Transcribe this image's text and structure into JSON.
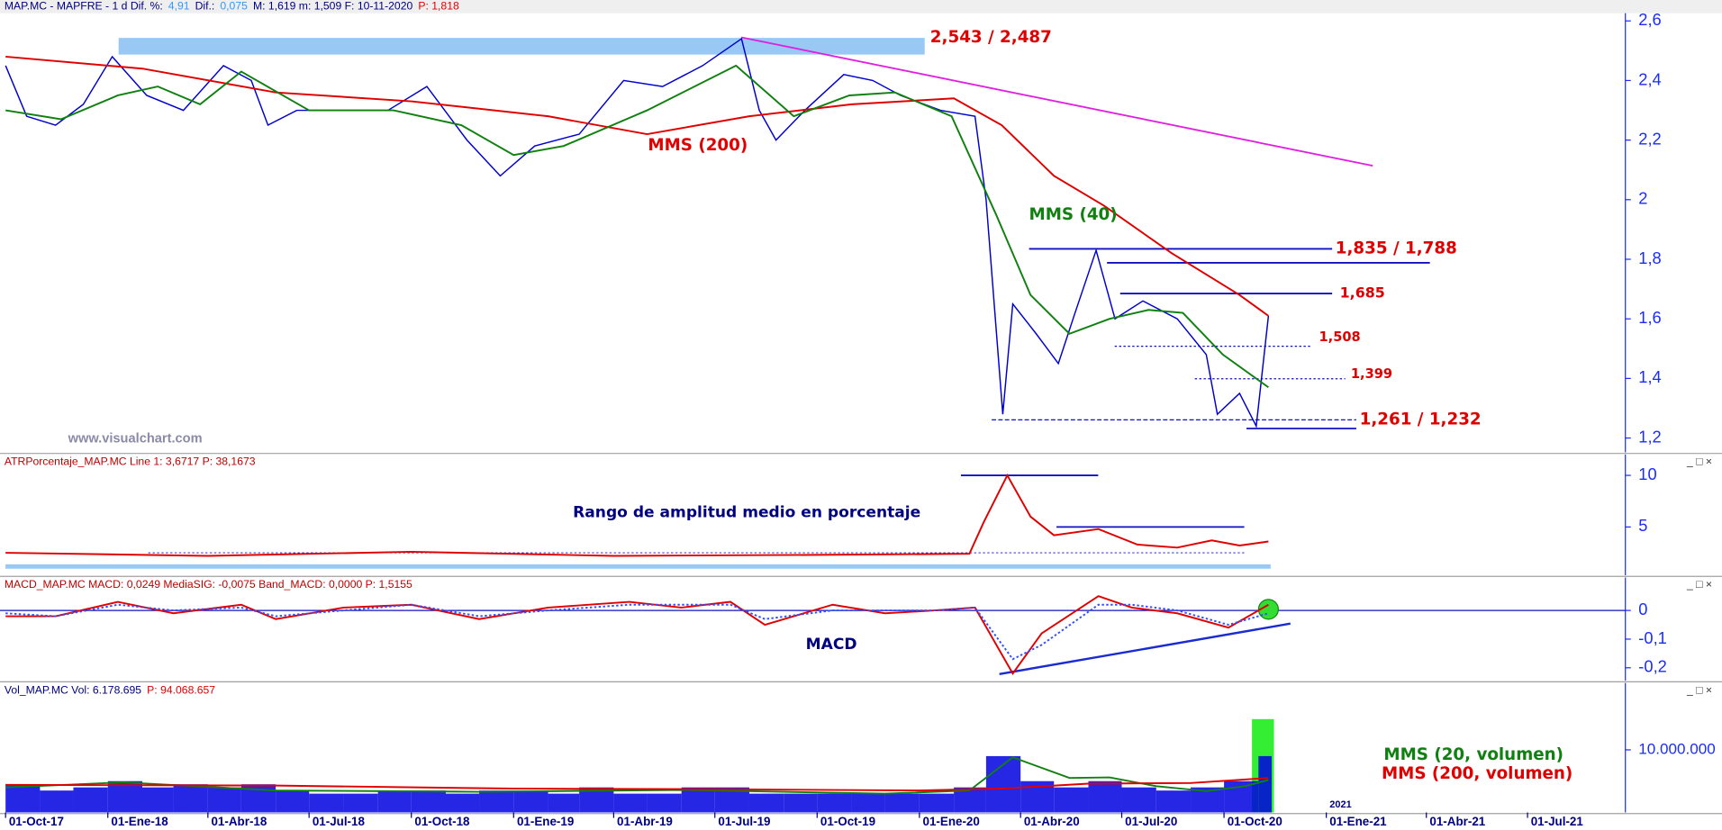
{
  "chart_data": [
    {
      "type": "line",
      "header": [
        {
          "text": "MAP.MC - MAPFRE -  1 d  Dif. %:",
          "color": "#000080"
        },
        {
          "text": "4,91",
          "color": "#3399ff"
        },
        {
          "text": "Dif.:",
          "color": "#000080"
        },
        {
          "text": "0,075",
          "color": "#3399ff"
        },
        {
          "text": "M: 1,619  m: 1,509  F: 10-11-2020",
          "color": "#000080"
        },
        {
          "text": "P: 1,818",
          "color": "#e00000"
        }
      ],
      "ylim": [
        1.152,
        2.626
      ],
      "yticks": [
        {
          "value": 2.6,
          "label": "2,6"
        },
        {
          "value": 2.4,
          "label": "2,4"
        },
        {
          "value": 2.2,
          "label": "2,2"
        },
        2,
        {
          "value": 1.8,
          "label": "1,8"
        },
        {
          "value": 1.6,
          "label": "1,6"
        },
        {
          "value": 1.4,
          "label": "1,4"
        },
        {
          "value": 1.2,
          "label": "1,2"
        }
      ],
      "series": [
        {
          "color": "#0000d0",
          "x": [
            "2017-10-01",
            "2017-10-20",
            "2017-11-15",
            "2017-12-10",
            "2018-01-05",
            "2018-02-05",
            "2018-03-10",
            "2018-04-15",
            "2018-05-10",
            "2018-05-25",
            "2018-06-20",
            "2018-08-10",
            "2018-09-10",
            "2018-10-15",
            "2018-11-20",
            "2018-12-20",
            "2019-01-20",
            "2019-03-01",
            "2019-04-10",
            "2019-05-15",
            "2019-06-20",
            "2019-07-25",
            "2019-08-10",
            "2019-08-25",
            "2019-09-20",
            "2019-10-25",
            "2019-11-20",
            "2019-12-15",
            "2020-01-20",
            "2020-02-20",
            "2020-03-01",
            "2020-03-16",
            "2020-03-25",
            "2020-04-15",
            "2020-05-05",
            "2020-05-20",
            "2020-06-08",
            "2020-06-25",
            "2020-07-20",
            "2020-08-20",
            "2020-09-15",
            "2020-09-25",
            "2020-10-15",
            "2020-10-30",
            "2020-11-10"
          ],
          "values": [
            2.45,
            2.28,
            2.25,
            2.32,
            2.48,
            2.35,
            2.3,
            2.45,
            2.4,
            2.25,
            2.3,
            2.3,
            2.3,
            2.38,
            2.2,
            2.08,
            2.18,
            2.22,
            2.4,
            2.38,
            2.45,
            2.54,
            2.3,
            2.2,
            2.3,
            2.42,
            2.4,
            2.35,
            2.3,
            2.28,
            2.0,
            1.28,
            1.65,
            1.55,
            1.45,
            1.62,
            1.83,
            1.6,
            1.66,
            1.6,
            1.48,
            1.28,
            1.35,
            1.24,
            1.61
          ]
        },
        {
          "name": "MMS (200)",
          "color": "#e00000",
          "x": [
            "2017-10-01",
            "2018-02-01",
            "2018-06-01",
            "2018-10-01",
            "2019-02-01",
            "2019-05-01",
            "2019-08-01",
            "2019-11-01",
            "2020-02-01",
            "2020-03-15",
            "2020-05-01",
            "2020-06-15",
            "2020-08-15",
            "2020-10-15",
            "2020-11-10"
          ],
          "values": [
            2.48,
            2.44,
            2.36,
            2.33,
            2.28,
            2.22,
            2.28,
            2.32,
            2.34,
            2.25,
            2.08,
            1.98,
            1.82,
            1.68,
            1.61
          ]
        },
        {
          "name": "MMS (40)",
          "color": "#108010",
          "x": [
            "2017-10-01",
            "2017-11-20",
            "2018-01-10",
            "2018-02-15",
            "2018-03-25",
            "2018-05-01",
            "2018-07-01",
            "2018-09-15",
            "2018-11-15",
            "2019-01-01",
            "2019-02-15",
            "2019-05-01",
            "2019-07-20",
            "2019-09-10",
            "2019-10-30",
            "2019-12-10",
            "2020-01-30",
            "2020-03-10",
            "2020-04-10",
            "2020-05-15",
            "2020-06-20",
            "2020-07-25",
            "2020-08-25",
            "2020-09-30",
            "2020-11-10"
          ],
          "values": [
            2.3,
            2.27,
            2.35,
            2.38,
            2.32,
            2.43,
            2.3,
            2.3,
            2.25,
            2.15,
            2.18,
            2.3,
            2.45,
            2.28,
            2.35,
            2.36,
            2.28,
            1.95,
            1.68,
            1.55,
            1.6,
            1.63,
            1.62,
            1.48,
            1.37
          ]
        }
      ],
      "levels": [
        {
          "label": "2,543 / 2,487",
          "values": [
            2.543,
            2.487
          ]
        },
        {
          "label": "1,835 / 1,788",
          "values": [
            1.835,
            1.788
          ]
        },
        {
          "label": "1,685",
          "values": [
            1.685
          ]
        },
        {
          "label": "1,508",
          "values": [
            1.508
          ]
        },
        {
          "label": "1,399",
          "values": [
            1.399
          ]
        },
        {
          "label": "1,261 / 1,232",
          "values": [
            1.261,
            1.232
          ]
        }
      ],
      "watermark": "www.visualchart.com"
    },
    {
      "type": "line",
      "header": [
        {
          "text": "ATRPorcentaje_MAP.MC  Line 1: 3,6717  P: 38,1673",
          "color": "#c00000"
        }
      ],
      "ylim": [
        0.32,
        12.02
      ],
      "yticks": [
        10,
        5
      ],
      "series": [
        {
          "color": "#e00000",
          "x": [
            "2017-10-01",
            "2018-04-01",
            "2018-10-01",
            "2019-04-01",
            "2019-10-01",
            "2020-02-15",
            "2020-02-28",
            "2020-03-20",
            "2020-04-10",
            "2020-05-01",
            "2020-06-10",
            "2020-07-15",
            "2020-08-20",
            "2020-09-20",
            "2020-10-15",
            "2020-11-10"
          ],
          "values": [
            2.5,
            2.2,
            2.6,
            2.2,
            2.3,
            2.4,
            5.5,
            10,
            6,
            4.2,
            4.8,
            3.3,
            3.0,
            3.7,
            3.2,
            3.6
          ]
        }
      ],
      "guides": [
        10,
        5,
        2.5
      ],
      "annotation": "Rango de amplitud medio en porcentaje"
    },
    {
      "type": "line",
      "header": [
        {
          "text": "MACD_MAP.MC  MACD: 0,0249  MediaSIG: -0,0075  Band_MACD: 0,0000  P: 1,5155",
          "color": "#c00000"
        }
      ],
      "ylim": [
        -0.245,
        0.115
      ],
      "yticks": [
        0,
        {
          "value": -0.1,
          "label": "-0,1"
        },
        {
          "value": -0.2,
          "label": "-0,2"
        }
      ],
      "zero_line": true,
      "series": [
        {
          "color": "#e00000",
          "x": [
            "2017-10-01",
            "2017-11-15",
            "2018-01-10",
            "2018-03-01",
            "2018-05-01",
            "2018-06-01",
            "2018-08-01",
            "2018-10-01",
            "2018-12-01",
            "2019-02-01",
            "2019-04-15",
            "2019-06-01",
            "2019-07-15",
            "2019-08-15",
            "2019-10-15",
            "2019-12-01",
            "2020-01-15",
            "2020-02-20",
            "2020-03-25",
            "2020-04-20",
            "2020-06-10",
            "2020-07-10",
            "2020-08-20",
            "2020-10-05",
            "2020-11-10"
          ],
          "values": [
            -0.02,
            -0.02,
            0.03,
            -0.01,
            0.02,
            -0.03,
            0.01,
            0.02,
            -0.03,
            0.01,
            0.03,
            0.01,
            0.03,
            -0.05,
            0.02,
            -0.01,
            0.0,
            0.01,
            -0.22,
            -0.08,
            0.05,
            0.01,
            -0.01,
            -0.06,
            0.02
          ]
        },
        {
          "color": "#3050ff",
          "dash": true,
          "x": [
            "2017-10-01",
            "2017-11-15",
            "2018-01-10",
            "2018-03-01",
            "2018-05-01",
            "2018-06-01",
            "2018-08-01",
            "2018-10-01",
            "2018-12-01",
            "2019-02-01",
            "2019-04-15",
            "2019-06-01",
            "2019-07-15",
            "2019-08-15",
            "2019-10-15",
            "2019-12-01",
            "2020-01-15",
            "2020-02-20",
            "2020-03-25",
            "2020-04-20",
            "2020-06-10",
            "2020-07-10",
            "2020-08-20",
            "2020-10-05",
            "2020-11-10"
          ],
          "values": [
            -0.01,
            -0.02,
            0.02,
            0.0,
            0.01,
            -0.02,
            0.0,
            0.02,
            -0.02,
            0.0,
            0.02,
            0.02,
            0.02,
            -0.03,
            0.0,
            0.0,
            0.0,
            0.01,
            -0.17,
            -0.12,
            0.02,
            0.02,
            0.0,
            -0.05,
            -0.01
          ]
        }
      ],
      "annotation": "MACD"
    },
    {
      "type": "bar",
      "header": [
        {
          "text": "Vol_MAP.MC  Vol: 6.178.695",
          "color": "#000080"
        },
        {
          "text": "P: 94.068.657",
          "color": "#e00000"
        }
      ],
      "ylim": [
        0,
        20700000
      ],
      "yticks": [
        {
          "value": 10000000,
          "label": "10.000.000"
        }
      ],
      "xlim": [
        "2017-09-26",
        "2021-09-27"
      ],
      "xticks": [
        {
          "value": "2017-10-01",
          "label": "01-Oct-17"
        },
        {
          "value": "2018-01-01",
          "label": "01-Ene-18"
        },
        {
          "value": "2018-04-01",
          "label": "01-Abr-18"
        },
        {
          "value": "2018-07-01",
          "label": "01-Jul-18"
        },
        {
          "value": "2018-10-01",
          "label": "01-Oct-18"
        },
        {
          "value": "2019-01-01",
          "label": "01-Ene-19"
        },
        {
          "value": "2019-04-01",
          "label": "01-Abr-19"
        },
        {
          "value": "2019-07-01",
          "label": "01-Jul-19"
        },
        {
          "value": "2019-10-01",
          "label": "01-Oct-19"
        },
        {
          "value": "2020-01-01",
          "label": "01-Ene-20"
        },
        {
          "value": "2020-04-01",
          "label": "01-Abr-20"
        },
        {
          "value": "2020-07-01",
          "label": "01-Jul-20"
        },
        {
          "value": "2020-10-01",
          "label": "01-Oct-20"
        },
        {
          "value": "2021-01-01",
          "label": "01-Ene-21"
        },
        {
          "value": "2021-04-01",
          "label": "01-Abr-21"
        },
        {
          "value": "2021-07-01",
          "label": "01-Jul-21"
        }
      ],
      "year_label": {
        "value": "2021-01-01",
        "label": "2021"
      },
      "series": [
        {
          "kind": "bar",
          "color": "#0000e0",
          "x": [
            "2017-10-01",
            "2017-11-01",
            "2017-12-01",
            "2018-01-01",
            "2018-02-01",
            "2018-03-01",
            "2018-04-01",
            "2018-05-01",
            "2018-06-01",
            "2018-07-01",
            "2018-08-01",
            "2018-09-01",
            "2018-10-01",
            "2018-11-01",
            "2018-12-01",
            "2019-01-01",
            "2019-02-01",
            "2019-03-01",
            "2019-04-01",
            "2019-05-01",
            "2019-06-01",
            "2019-07-01",
            "2019-08-01",
            "2019-09-01",
            "2019-10-01",
            "2019-11-01",
            "2019-12-01",
            "2020-01-01",
            "2020-02-01",
            "2020-03-01",
            "2020-04-01",
            "2020-05-01",
            "2020-06-01",
            "2020-07-01",
            "2020-08-01",
            "2020-09-01",
            "2020-10-01",
            "2020-11-01"
          ],
          "values": [
            4500000,
            3500000,
            4000000,
            5000000,
            4000000,
            4500000,
            4000000,
            4500000,
            3500000,
            3000000,
            3000000,
            3500000,
            3500000,
            3000000,
            3500000,
            3500000,
            3000000,
            4000000,
            3000000,
            3000000,
            4000000,
            4000000,
            3000000,
            3000000,
            3000000,
            3000000,
            3000000,
            3000000,
            4000000,
            9000000,
            5000000,
            4000000,
            5000000,
            4000000,
            3500000,
            4000000,
            5000000,
            9000000
          ]
        },
        {
          "name": "MMS (20, volumen)",
          "color": "#108010",
          "x": [
            "2017-10-01",
            "2018-01-15",
            "2018-06-01",
            "2018-12-01",
            "2019-06-01",
            "2019-12-01",
            "2020-02-15",
            "2020-03-25",
            "2020-05-15",
            "2020-06-20",
            "2020-08-01",
            "2020-09-15",
            "2020-10-20",
            "2020-11-10"
          ],
          "values": [
            4000000,
            4800000,
            3500000,
            3300000,
            3600000,
            3000000,
            3500000,
            8800000,
            5500000,
            5600000,
            4200000,
            3400000,
            4200000,
            5200000
          ]
        },
        {
          "name": "MMS (200, volumen)",
          "color": "#e00000",
          "x": [
            "2017-10-01",
            "2018-06-01",
            "2019-01-01",
            "2019-07-01",
            "2020-01-01",
            "2020-03-15",
            "2020-06-01",
            "2020-09-01",
            "2020-11-10"
          ],
          "values": [
            4400000,
            4300000,
            3800000,
            3700000,
            3500000,
            3800000,
            4600000,
            4700000,
            5500000
          ]
        }
      ]
    }
  ]
}
